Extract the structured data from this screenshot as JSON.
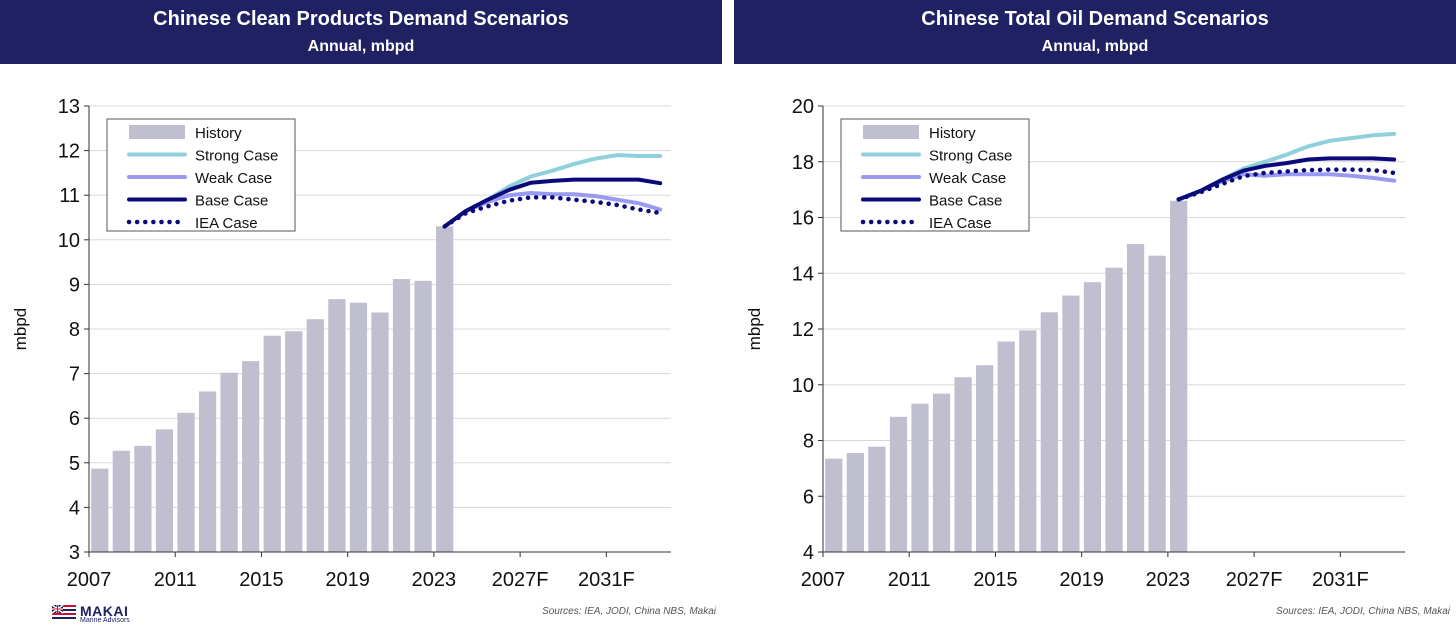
{
  "logo": {
    "name": "MAKAI",
    "tagline": "Marine Advisors"
  },
  "colors": {
    "banner": "#1f2163",
    "history": "#c0bfd0",
    "strong": "#8fd0dc",
    "weak": "#9a9af2",
    "base": "#0a0a7a",
    "iea": "#0a0a7a"
  },
  "chart_data": [
    {
      "type": "bar",
      "title": "Chinese Clean Products Demand Scenarios",
      "subtitle": "Annual, mbpd",
      "ylabel": "mbpd",
      "ylim": [
        3,
        13
      ],
      "yticks": [
        3,
        4,
        5,
        6,
        7,
        8,
        9,
        10,
        11,
        12,
        13
      ],
      "x_tick_labels": [
        "2007",
        "2011",
        "2015",
        "2019",
        "2023",
        "2027F",
        "2031F"
      ],
      "legend": [
        "History",
        "Strong Case",
        "Weak Case",
        "Base Case",
        "IEA Case"
      ],
      "legend_position": "top-left",
      "grid": true,
      "source": "Sources: IEA, JODI, China NBS, Makai",
      "history": {
        "name": "History",
        "x": [
          2007,
          2008,
          2009,
          2010,
          2011,
          2012,
          2013,
          2014,
          2015,
          2016,
          2017,
          2018,
          2019,
          2020,
          2021,
          2022,
          2023
        ],
        "values": [
          4.87,
          5.27,
          5.38,
          5.75,
          6.12,
          6.6,
          7.02,
          7.28,
          7.85,
          7.95,
          8.22,
          8.67,
          8.59,
          8.37,
          9.12,
          9.08,
          10.3
        ]
      },
      "series": [
        {
          "name": "Strong Case",
          "style": "line",
          "x": [
            2023,
            2024,
            2025,
            2026,
            2027,
            2028,
            2029,
            2030,
            2031,
            2032,
            2033
          ],
          "values": [
            10.3,
            10.65,
            10.9,
            11.2,
            11.42,
            11.55,
            11.7,
            11.82,
            11.9,
            11.88,
            11.88
          ]
        },
        {
          "name": "Weak Case",
          "style": "line",
          "x": [
            2023,
            2024,
            2025,
            2026,
            2027,
            2028,
            2029,
            2030,
            2031,
            2032,
            2033
          ],
          "values": [
            10.3,
            10.65,
            10.85,
            11.0,
            11.05,
            11.02,
            11.02,
            10.98,
            10.9,
            10.82,
            10.68
          ]
        },
        {
          "name": "Base Case",
          "style": "line",
          "x": [
            2023,
            2024,
            2025,
            2026,
            2027,
            2028,
            2029,
            2030,
            2031,
            2032,
            2033
          ],
          "values": [
            10.3,
            10.65,
            10.9,
            11.12,
            11.28,
            11.32,
            11.35,
            11.35,
            11.35,
            11.35,
            11.27
          ]
        },
        {
          "name": "IEA Case",
          "style": "dotted",
          "x": [
            2023,
            2024,
            2025,
            2026,
            2027,
            2028,
            2029,
            2030,
            2031,
            2032,
            2033
          ],
          "values": [
            10.3,
            10.6,
            10.75,
            10.88,
            10.95,
            10.95,
            10.9,
            10.85,
            10.78,
            10.68,
            10.6
          ]
        }
      ]
    },
    {
      "type": "bar",
      "title": "Chinese Total Oil Demand Scenarios",
      "subtitle": "Annual, mbpd",
      "ylabel": "mbpd",
      "ylim": [
        4,
        20
      ],
      "yticks": [
        4,
        6,
        8,
        10,
        12,
        14,
        16,
        18,
        20
      ],
      "x_tick_labels": [
        "2007",
        "2011",
        "2015",
        "2019",
        "2023",
        "2027F",
        "2031F"
      ],
      "legend": [
        "History",
        "Strong Case",
        "Weak Case",
        "Base Case",
        "IEA Case"
      ],
      "legend_position": "top-left",
      "grid": true,
      "source": "Sources: IEA, JODI, China NBS, Makai",
      "history": {
        "name": "History",
        "x": [
          2007,
          2008,
          2009,
          2010,
          2011,
          2012,
          2013,
          2014,
          2015,
          2016,
          2017,
          2018,
          2019,
          2020,
          2021,
          2022,
          2023
        ],
        "values": [
          7.35,
          7.55,
          7.78,
          8.85,
          9.32,
          9.68,
          10.27,
          10.7,
          11.55,
          11.95,
          12.6,
          13.2,
          13.68,
          14.2,
          15.05,
          14.63,
          16.6
        ]
      },
      "series": [
        {
          "name": "Strong Case",
          "style": "line",
          "x": [
            2023,
            2024,
            2025,
            2026,
            2027,
            2028,
            2029,
            2030,
            2031,
            2032,
            2033
          ],
          "values": [
            16.65,
            16.95,
            17.35,
            17.75,
            18.0,
            18.25,
            18.55,
            18.75,
            18.85,
            18.95,
            19.0
          ]
        },
        {
          "name": "Weak Case",
          "style": "line",
          "x": [
            2023,
            2024,
            2025,
            2026,
            2027,
            2028,
            2029,
            2030,
            2031,
            2032,
            2033
          ],
          "values": [
            16.65,
            16.95,
            17.3,
            17.55,
            17.5,
            17.55,
            17.55,
            17.55,
            17.5,
            17.42,
            17.32
          ]
        },
        {
          "name": "Base Case",
          "style": "line",
          "x": [
            2023,
            2024,
            2025,
            2026,
            2027,
            2028,
            2029,
            2030,
            2031,
            2032,
            2033
          ],
          "values": [
            16.65,
            16.95,
            17.35,
            17.68,
            17.85,
            17.95,
            18.08,
            18.12,
            18.12,
            18.12,
            18.08
          ]
        },
        {
          "name": "IEA Case",
          "style": "dotted",
          "x": [
            2023,
            2024,
            2025,
            2026,
            2027,
            2028,
            2029,
            2030,
            2031,
            2032,
            2033
          ],
          "values": [
            16.65,
            16.9,
            17.2,
            17.48,
            17.6,
            17.65,
            17.7,
            17.72,
            17.72,
            17.7,
            17.6
          ]
        }
      ]
    }
  ]
}
